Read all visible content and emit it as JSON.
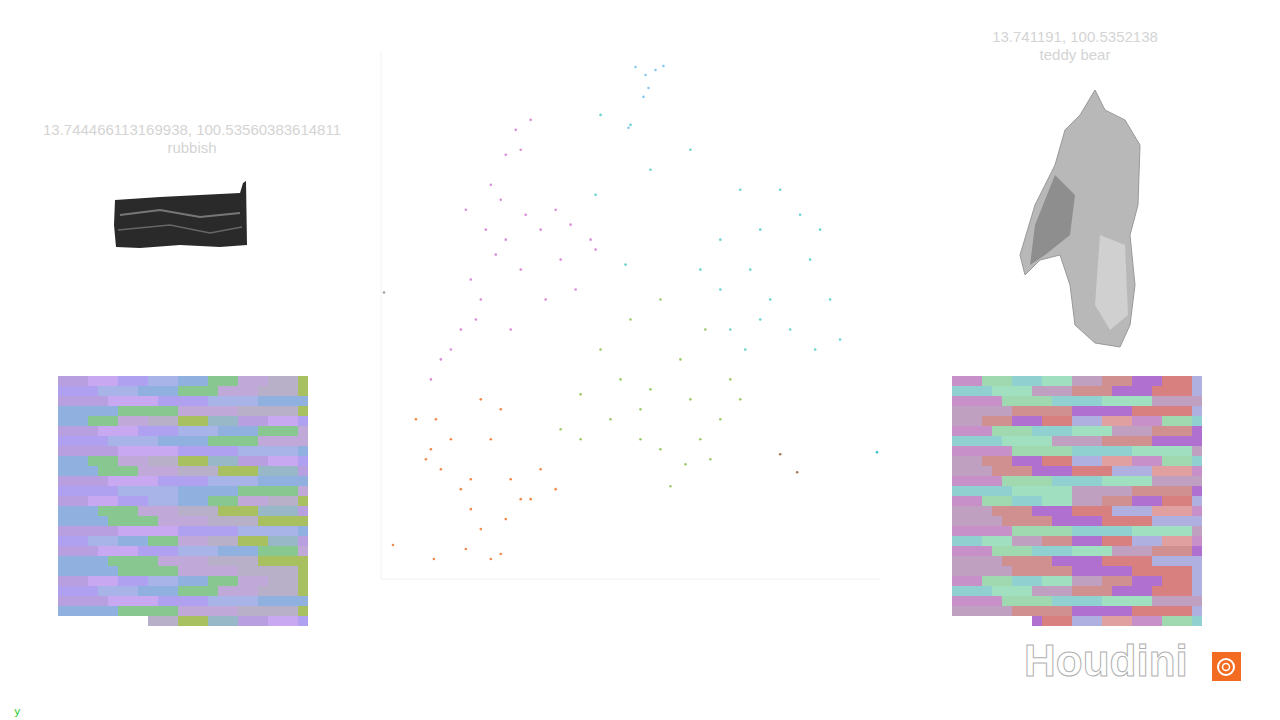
{
  "panels": [
    {
      "coordinates": "13.744466113169938, 100.53560383614811",
      "name": "rubbish"
    },
    {
      "coordinates": "13.741191, 100.5352138",
      "name": "teddy bear"
    }
  ],
  "logo": "Houdini",
  "corner_label": "y",
  "chart_data": {
    "type": "scatter",
    "tick_labels": false,
    "reversed_y": true,
    "xlim": [
      380,
      880
    ],
    "ylim": [
      50,
      580
    ],
    "series": [
      {
        "color": "#d98bd6",
        "points": [
          [
            515,
            130
          ],
          [
            520,
            150
          ],
          [
            505,
            155
          ],
          [
            530,
            120
          ],
          [
            490,
            185
          ],
          [
            500,
            200
          ],
          [
            485,
            230
          ],
          [
            495,
            255
          ],
          [
            505,
            240
          ],
          [
            470,
            280
          ],
          [
            480,
            300
          ],
          [
            460,
            330
          ],
          [
            450,
            350
          ],
          [
            475,
            320
          ],
          [
            520,
            270
          ],
          [
            540,
            230
          ],
          [
            555,
            210
          ],
          [
            560,
            260
          ],
          [
            545,
            300
          ],
          [
            590,
            240
          ],
          [
            595,
            250
          ],
          [
            575,
            290
          ],
          [
            440,
            360
          ],
          [
            430,
            380
          ],
          [
            465,
            210
          ],
          [
            510,
            330
          ],
          [
            525,
            215
          ],
          [
            570,
            225
          ]
        ]
      },
      {
        "color": "#66d4d0",
        "points": [
          [
            600,
            115
          ],
          [
            630,
            125
          ],
          [
            595,
            195
          ],
          [
            650,
            170
          ],
          [
            720,
            240
          ],
          [
            740,
            190
          ],
          [
            760,
            230
          ],
          [
            780,
            190
          ],
          [
            800,
            215
          ],
          [
            750,
            270
          ],
          [
            770,
            300
          ],
          [
            810,
            260
          ],
          [
            830,
            300
          ],
          [
            840,
            340
          ],
          [
            790,
            330
          ],
          [
            760,
            320
          ],
          [
            720,
            290
          ],
          [
            700,
            270
          ],
          [
            815,
            350
          ],
          [
            745,
            350
          ],
          [
            730,
            330
          ],
          [
            820,
            230
          ],
          [
            690,
            150
          ],
          [
            625,
            265
          ]
        ]
      },
      {
        "color": "#88c8f0",
        "points": [
          [
            635,
            67
          ],
          [
            645,
            75
          ],
          [
            655,
            70
          ],
          [
            663,
            66
          ],
          [
            648,
            88
          ],
          [
            643,
            97
          ],
          [
            628,
            128
          ]
        ]
      },
      {
        "color": "#f0894a",
        "points": [
          [
            415,
            420
          ],
          [
            430,
            450
          ],
          [
            440,
            470
          ],
          [
            460,
            490
          ],
          [
            470,
            510
          ],
          [
            480,
            530
          ],
          [
            490,
            560
          ],
          [
            500,
            555
          ],
          [
            505,
            520
          ],
          [
            520,
            500
          ],
          [
            470,
            480
          ],
          [
            450,
            440
          ],
          [
            435,
            420
          ],
          [
            425,
            460
          ],
          [
            510,
            480
          ],
          [
            530,
            500
          ],
          [
            540,
            470
          ],
          [
            555,
            490
          ],
          [
            490,
            440
          ],
          [
            465,
            550
          ],
          [
            392,
            546
          ],
          [
            433,
            560
          ],
          [
            480,
            400
          ],
          [
            500,
            410
          ]
        ]
      },
      {
        "color": "#9acb6a",
        "points": [
          [
            560,
            430
          ],
          [
            580,
            440
          ],
          [
            610,
            420
          ],
          [
            640,
            440
          ],
          [
            660,
            450
          ],
          [
            685,
            465
          ],
          [
            700,
            440
          ],
          [
            720,
            420
          ],
          [
            710,
            460
          ],
          [
            740,
            400
          ],
          [
            730,
            380
          ],
          [
            690,
            400
          ],
          [
            650,
            390
          ],
          [
            620,
            380
          ],
          [
            600,
            350
          ],
          [
            630,
            320
          ],
          [
            660,
            300
          ],
          [
            680,
            360
          ],
          [
            705,
            330
          ],
          [
            580,
            395
          ],
          [
            670,
            487
          ],
          [
            640,
            410
          ]
        ]
      },
      {
        "color": "#a8785a",
        "points": [
          [
            780,
            455
          ],
          [
            797,
            473
          ]
        ]
      },
      {
        "color": "#30c0c0",
        "points": [
          [
            877,
            453
          ]
        ]
      },
      {
        "color": "#a0a0b0",
        "points": [
          [
            383,
            293
          ]
        ]
      }
    ]
  }
}
